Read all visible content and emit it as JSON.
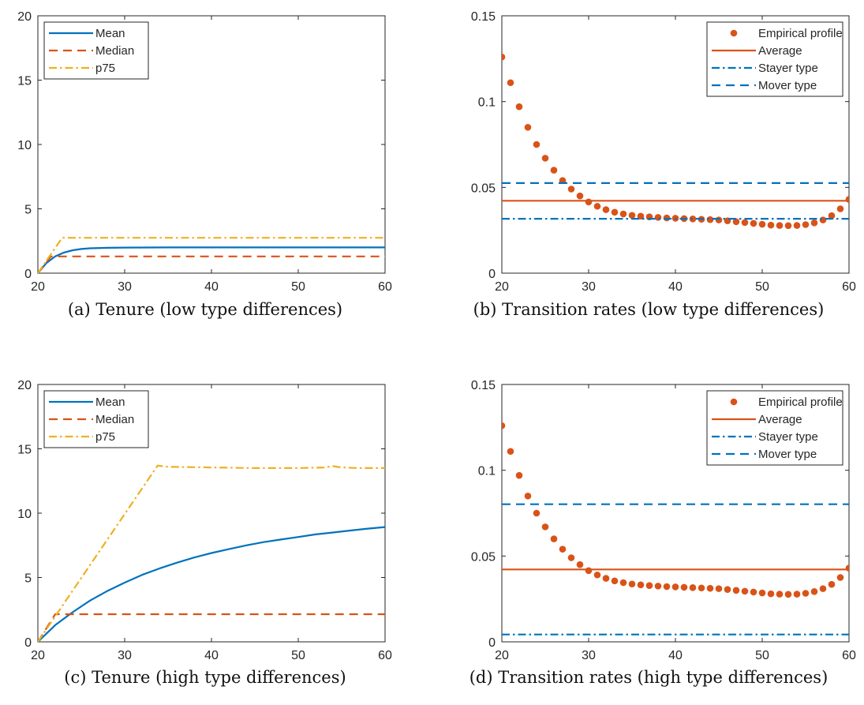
{
  "chart_data": [
    {
      "id": "a",
      "type": "line",
      "caption": "(a) Tenure (low type differences)",
      "xlim": [
        20,
        60
      ],
      "ylim": [
        0,
        20
      ],
      "xticks": [
        20,
        30,
        40,
        50,
        60
      ],
      "yticks": [
        0,
        5,
        10,
        15,
        20
      ],
      "xtick_labels": [
        "20",
        "30",
        "40",
        "50",
        "60"
      ],
      "ytick_labels": [
        "0",
        "5",
        "10",
        "15",
        "20"
      ],
      "legend_position": "top-left",
      "series": [
        {
          "name": "Mean",
          "style": "solid",
          "color": "#0072BD",
          "x": [
            20,
            21,
            22,
            23,
            24,
            25,
            26,
            28,
            30,
            35,
            40,
            45,
            50,
            55,
            60
          ],
          "y": [
            0,
            0.8,
            1.3,
            1.6,
            1.78,
            1.88,
            1.93,
            1.97,
            1.99,
            2.0,
            2.0,
            2.0,
            2.0,
            2.0,
            2.0
          ]
        },
        {
          "name": "Median",
          "style": "dashed",
          "color": "#D95319",
          "x": [
            20,
            21.5,
            60
          ],
          "y": [
            0,
            1.3,
            1.3
          ]
        },
        {
          "name": "p75",
          "style": "dashdot",
          "color": "#EDB120",
          "x": [
            20,
            22.8,
            60
          ],
          "y": [
            0,
            2.75,
            2.75
          ]
        }
      ]
    },
    {
      "id": "b",
      "type": "scatter",
      "caption": "(b) Transition rates (low type differences)",
      "xlim": [
        20,
        60
      ],
      "ylim": [
        0,
        0.15
      ],
      "xticks": [
        20,
        30,
        40,
        50,
        60
      ],
      "yticks": [
        0,
        0.05,
        0.1,
        0.15
      ],
      "xtick_labels": [
        "20",
        "30",
        "40",
        "50",
        "60"
      ],
      "ytick_labels": [
        "0",
        "0.05",
        "0.1",
        "0.15"
      ],
      "legend_position": "top-right",
      "series": [
        {
          "name": "Empirical profile",
          "style": "markers",
          "color": "#D95319",
          "x": [
            20,
            21,
            22,
            23,
            24,
            25,
            26,
            27,
            28,
            29,
            30,
            31,
            32,
            33,
            34,
            35,
            36,
            37,
            38,
            39,
            40,
            41,
            42,
            43,
            44,
            45,
            46,
            47,
            48,
            49,
            50,
            51,
            52,
            53,
            54,
            55,
            56,
            57,
            58,
            59,
            60
          ],
          "y": [
            0.126,
            0.111,
            0.097,
            0.085,
            0.075,
            0.067,
            0.06,
            0.054,
            0.049,
            0.045,
            0.0415,
            0.039,
            0.037,
            0.0355,
            0.0345,
            0.0337,
            0.0332,
            0.0328,
            0.0325,
            0.0322,
            0.032,
            0.0318,
            0.0316,
            0.0314,
            0.0312,
            0.031,
            0.0305,
            0.03,
            0.0295,
            0.029,
            0.0285,
            0.028,
            0.0278,
            0.0277,
            0.0278,
            0.0283,
            0.0293,
            0.031,
            0.0335,
            0.0375,
            0.043
          ]
        },
        {
          "name": "Average",
          "style": "solid",
          "color": "#D95319",
          "x": [
            20,
            60
          ],
          "y": [
            0.0422,
            0.0422
          ]
        },
        {
          "name": "Stayer type",
          "style": "dashdot",
          "color": "#0072BD",
          "x": [
            20,
            60
          ],
          "y": [
            0.0317,
            0.0317
          ]
        },
        {
          "name": "Mover type",
          "style": "dashed",
          "color": "#0072BD",
          "x": [
            20,
            60
          ],
          "y": [
            0.0525,
            0.0525
          ]
        }
      ]
    },
    {
      "id": "c",
      "type": "line",
      "caption": "(c) Tenure (high type differences)",
      "xlim": [
        20,
        60
      ],
      "ylim": [
        0,
        20
      ],
      "xticks": [
        20,
        30,
        40,
        50,
        60
      ],
      "yticks": [
        0,
        5,
        10,
        15,
        20
      ],
      "xtick_labels": [
        "20",
        "30",
        "40",
        "50",
        "60"
      ],
      "ytick_labels": [
        "0",
        "5",
        "10",
        "15",
        "20"
      ],
      "legend_position": "top-left",
      "series": [
        {
          "name": "Mean",
          "style": "solid",
          "color": "#0072BD",
          "x": [
            20,
            22,
            24,
            26,
            28,
            30,
            32,
            34,
            36,
            38,
            40,
            42,
            44,
            46,
            48,
            50,
            52,
            54,
            56,
            58,
            60
          ],
          "y": [
            0,
            1.3,
            2.3,
            3.2,
            3.95,
            4.6,
            5.2,
            5.7,
            6.15,
            6.55,
            6.9,
            7.2,
            7.5,
            7.75,
            7.95,
            8.15,
            8.35,
            8.5,
            8.65,
            8.8,
            8.92
          ]
        },
        {
          "name": "Median",
          "style": "dashed",
          "color": "#D95319",
          "x": [
            20,
            22,
            60
          ],
          "y": [
            0,
            2.15,
            2.15
          ]
        },
        {
          "name": "p75",
          "style": "dashdot",
          "color": "#EDB120",
          "x": [
            20,
            33.8,
            35,
            40,
            45,
            50,
            53,
            54,
            55,
            57,
            60
          ],
          "y": [
            0,
            13.7,
            13.6,
            13.55,
            13.5,
            13.5,
            13.55,
            13.65,
            13.55,
            13.5,
            13.5
          ]
        }
      ]
    },
    {
      "id": "d",
      "type": "scatter",
      "caption": "(d) Transition rates (high type differences)",
      "xlim": [
        20,
        60
      ],
      "ylim": [
        0,
        0.15
      ],
      "xticks": [
        20,
        30,
        40,
        50,
        60
      ],
      "yticks": [
        0,
        0.05,
        0.1,
        0.15
      ],
      "xtick_labels": [
        "20",
        "30",
        "40",
        "50",
        "60"
      ],
      "ytick_labels": [
        "0",
        "0.05",
        "0.1",
        "0.15"
      ],
      "legend_position": "top-right",
      "series": [
        {
          "name": "Empirical profile",
          "style": "markers",
          "color": "#D95319",
          "x": [
            20,
            21,
            22,
            23,
            24,
            25,
            26,
            27,
            28,
            29,
            30,
            31,
            32,
            33,
            34,
            35,
            36,
            37,
            38,
            39,
            40,
            41,
            42,
            43,
            44,
            45,
            46,
            47,
            48,
            49,
            50,
            51,
            52,
            53,
            54,
            55,
            56,
            57,
            58,
            59,
            60
          ],
          "y": [
            0.126,
            0.111,
            0.097,
            0.085,
            0.075,
            0.067,
            0.06,
            0.054,
            0.049,
            0.045,
            0.0415,
            0.039,
            0.037,
            0.0355,
            0.0345,
            0.0337,
            0.0332,
            0.0328,
            0.0325,
            0.0322,
            0.032,
            0.0318,
            0.0316,
            0.0314,
            0.0312,
            0.031,
            0.0305,
            0.03,
            0.0295,
            0.029,
            0.0285,
            0.028,
            0.0278,
            0.0277,
            0.0278,
            0.0283,
            0.0293,
            0.031,
            0.0335,
            0.0375,
            0.043
          ]
        },
        {
          "name": "Average",
          "style": "solid",
          "color": "#D95319",
          "x": [
            20,
            60
          ],
          "y": [
            0.0422,
            0.0422
          ]
        },
        {
          "name": "Stayer type",
          "style": "dashdot",
          "color": "#0072BD",
          "x": [
            20,
            60
          ],
          "y": [
            0.0043,
            0.0043
          ]
        },
        {
          "name": "Mover type",
          "style": "dashed",
          "color": "#0072BD",
          "x": [
            20,
            60
          ],
          "y": [
            0.0802,
            0.0802
          ]
        }
      ]
    }
  ]
}
